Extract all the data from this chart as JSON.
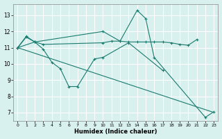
{
  "xlabel": "Humidex (Indice chaleur)",
  "bg_color": "#d8f0ee",
  "line_color": "#1a7a6e",
  "grid_color": "#b8ddd8",
  "xlim": [
    -0.5,
    23.5
  ],
  "ylim": [
    6.5,
    13.7
  ],
  "yticks": [
    7,
    8,
    9,
    10,
    11,
    12,
    13
  ],
  "xticks": [
    0,
    1,
    2,
    3,
    4,
    5,
    6,
    7,
    8,
    9,
    10,
    11,
    12,
    13,
    14,
    15,
    16,
    17,
    18,
    19,
    20,
    21,
    22,
    23
  ],
  "line1_x": [
    0,
    1,
    2,
    10,
    12,
    14,
    15,
    16,
    22,
    23
  ],
  "line1_y": [
    11.0,
    11.7,
    11.35,
    12.0,
    11.4,
    13.3,
    12.8,
    10.4,
    6.7,
    7.05
  ],
  "line2_x": [
    0,
    1,
    2,
    3,
    10,
    11,
    12,
    13,
    14,
    15,
    16,
    17,
    18,
    19,
    20,
    21
  ],
  "line2_y": [
    11.0,
    11.65,
    11.35,
    11.2,
    11.3,
    11.4,
    11.4,
    11.35,
    11.35,
    11.35,
    11.35,
    11.35,
    11.3,
    11.2,
    11.15,
    11.5
  ],
  "line3_x": [
    0,
    2,
    3,
    4,
    5,
    6,
    7,
    9,
    10,
    13,
    17
  ],
  "line3_y": [
    11.0,
    11.35,
    10.9,
    10.1,
    9.7,
    8.6,
    8.6,
    10.3,
    10.4,
    11.3,
    9.6
  ],
  "line4_x": [
    0,
    23
  ],
  "line4_y": [
    11.0,
    7.0
  ]
}
